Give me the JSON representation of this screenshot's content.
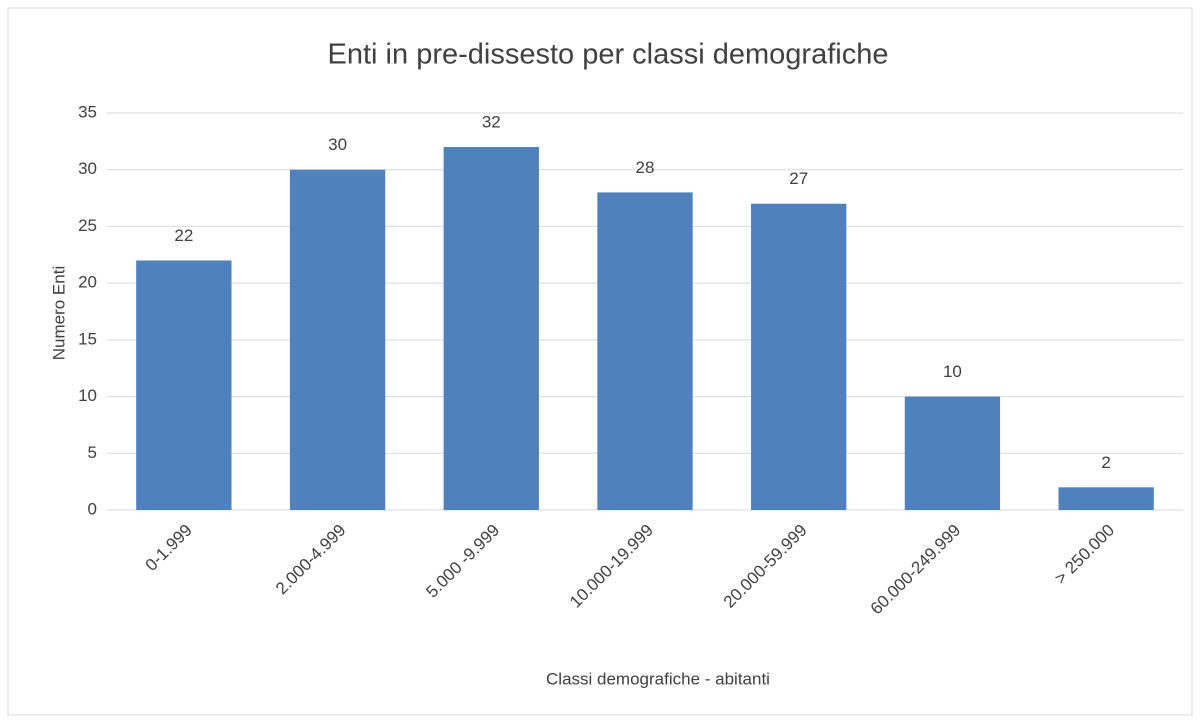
{
  "chart_data": {
    "type": "bar",
    "title": "Enti in pre-dissesto per classi demografiche",
    "xlabel": "Classi demografiche - abitanti",
    "ylabel": "Numero Enti",
    "categories": [
      "0-1.999",
      "2.000-4.999",
      "5.000 -9.999",
      "10.000-19.999",
      "20.000-59.999",
      "60.000-249.999",
      "> 250.000"
    ],
    "values": [
      22,
      30,
      32,
      28,
      27,
      10,
      2
    ],
    "color": "#4f81bd",
    "ylim": [
      0,
      35
    ],
    "yticks": [
      0,
      5,
      10,
      15,
      20,
      25,
      30,
      35
    ],
    "grid": true
  }
}
